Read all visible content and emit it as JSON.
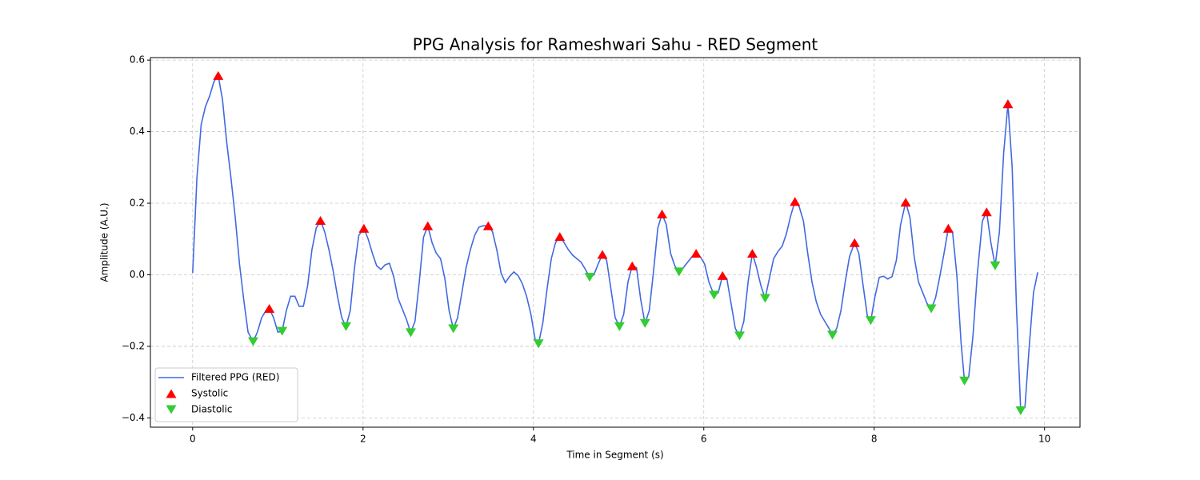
{
  "chart_data": {
    "type": "line",
    "title": "PPG Analysis for Rameshwari Sahu - RED Segment",
    "xlabel": "Time in Segment (s)",
    "ylabel": "Amplitude (A.U.)",
    "xlim": [
      -0.496,
      10.416
    ],
    "ylim": [
      -0.426,
      0.607
    ],
    "xticks": [
      0,
      2,
      4,
      6,
      8,
      10
    ],
    "yticks": [
      {
        "value": -0.4,
        "label": "−0.4"
      },
      {
        "value": -0.2,
        "label": "−0.2"
      },
      {
        "value": 0,
        "label": "0.0"
      },
      0.2,
      0.4,
      0.6
    ],
    "grid": true,
    "legend": "lower left",
    "series": [
      {
        "name": "Filtered PPG (RED)",
        "type": "line",
        "color": "#4169e1",
        "x": [
          0,
          0.05,
          0.1,
          0.15,
          0.2,
          0.25,
          0.3,
          0.35,
          0.4,
          0.45,
          0.5,
          0.55,
          0.6,
          0.65,
          0.71,
          0.76,
          0.81,
          0.86,
          0.9,
          0.95,
          1.0,
          1.05,
          1.1,
          1.15,
          1.2,
          1.25,
          1.3,
          1.35,
          1.4,
          1.45,
          1.5,
          1.55,
          1.6,
          1.65,
          1.7,
          1.75,
          1.8,
          1.85,
          1.9,
          1.95,
          2.01,
          2.06,
          2.11,
          2.16,
          2.21,
          2.26,
          2.31,
          2.36,
          2.41,
          2.46,
          2.51,
          2.56,
          2.61,
          2.66,
          2.71,
          2.76,
          2.81,
          2.86,
          2.91,
          2.96,
          3.01,
          3.06,
          3.11,
          3.16,
          3.21,
          3.26,
          3.31,
          3.36,
          3.41,
          3.47,
          3.52,
          3.57,
          3.62,
          3.67,
          3.72,
          3.77,
          3.82,
          3.87,
          3.92,
          3.97,
          4.02,
          4.06,
          4.11,
          4.16,
          4.21,
          4.26,
          4.31,
          4.36,
          4.41,
          4.46,
          4.51,
          4.56,
          4.61,
          4.66,
          4.71,
          4.76,
          4.81,
          4.86,
          4.91,
          4.96,
          5.01,
          5.06,
          5.11,
          5.16,
          5.21,
          5.26,
          5.31,
          5.36,
          5.41,
          5.46,
          5.51,
          5.56,
          5.61,
          5.66,
          5.71,
          5.76,
          5.81,
          5.86,
          5.91,
          5.96,
          6.01,
          6.06,
          6.12,
          6.17,
          6.22,
          6.27,
          6.32,
          6.37,
          6.42,
          6.47,
          6.52,
          6.57,
          6.62,
          6.67,
          6.72,
          6.77,
          6.82,
          6.87,
          6.92,
          6.97,
          7.02,
          7.07,
          7.12,
          7.17,
          7.22,
          7.27,
          7.32,
          7.37,
          7.42,
          7.47,
          7.51,
          7.56,
          7.61,
          7.66,
          7.71,
          7.77,
          7.82,
          7.87,
          7.92,
          7.96,
          8.01,
          8.06,
          8.11,
          8.16,
          8.21,
          8.26,
          8.31,
          8.37,
          8.42,
          8.47,
          8.52,
          8.57,
          8.62,
          8.67,
          8.72,
          8.77,
          8.82,
          8.87,
          8.92,
          8.97,
          9.02,
          9.06,
          9.11,
          9.16,
          9.21,
          9.27,
          9.32,
          9.37,
          9.42,
          9.47,
          9.52,
          9.57,
          9.62,
          9.67,
          9.72,
          9.77,
          9.82,
          9.87,
          9.92
        ],
        "values": [
          0.005,
          0.27,
          0.42,
          0.47,
          0.5,
          0.54,
          0.557,
          0.49,
          0.37,
          0.27,
          0.16,
          0.03,
          -0.07,
          -0.16,
          -0.187,
          -0.16,
          -0.12,
          -0.1,
          -0.094,
          -0.12,
          -0.16,
          -0.158,
          -0.1,
          -0.06,
          -0.06,
          -0.088,
          -0.088,
          -0.03,
          0.07,
          0.13,
          0.152,
          0.12,
          0.07,
          0.01,
          -0.06,
          -0.12,
          -0.145,
          -0.1,
          0.02,
          0.11,
          0.13,
          0.1,
          0.06,
          0.025,
          0.015,
          0.028,
          0.032,
          -0.005,
          -0.065,
          -0.095,
          -0.125,
          -0.162,
          -0.13,
          -0.02,
          0.105,
          0.137,
          0.09,
          0.06,
          0.045,
          -0.01,
          -0.1,
          -0.151,
          -0.12,
          -0.05,
          0.02,
          0.07,
          0.11,
          0.133,
          0.137,
          0.137,
          0.12,
          0.07,
          0.005,
          -0.022,
          -0.005,
          0.008,
          -0.002,
          -0.025,
          -0.06,
          -0.11,
          -0.18,
          -0.193,
          -0.135,
          -0.04,
          0.045,
          0.09,
          0.107,
          0.09,
          0.07,
          0.055,
          0.045,
          0.035,
          0.015,
          -0.007,
          0.0,
          0.03,
          0.057,
          0.04,
          -0.04,
          -0.12,
          -0.145,
          -0.11,
          -0.02,
          0.025,
          0.02,
          -0.07,
          -0.136,
          -0.1,
          0.01,
          0.13,
          0.17,
          0.14,
          0.06,
          0.025,
          0.008,
          0.02,
          0.035,
          0.05,
          0.06,
          0.05,
          0.03,
          -0.02,
          -0.057,
          -0.05,
          -0.002,
          -0.01,
          -0.08,
          -0.15,
          -0.171,
          -0.13,
          -0.02,
          0.06,
          0.02,
          -0.03,
          -0.066,
          -0.01,
          0.045,
          0.065,
          0.08,
          0.115,
          0.165,
          0.205,
          0.19,
          0.15,
          0.06,
          -0.02,
          -0.075,
          -0.11,
          -0.13,
          -0.15,
          -0.169,
          -0.15,
          -0.1,
          -0.02,
          0.05,
          0.09,
          0.06,
          -0.03,
          -0.115,
          -0.128,
          -0.06,
          -0.007,
          -0.004,
          -0.012,
          -0.005,
          0.04,
          0.14,
          0.203,
          0.16,
          0.05,
          -0.02,
          -0.05,
          -0.08,
          -0.095,
          -0.065,
          -0.005,
          0.06,
          0.13,
          0.12,
          0.0,
          -0.19,
          -0.297,
          -0.285,
          -0.17,
          0.0,
          0.15,
          0.176,
          0.09,
          0.025,
          0.12,
          0.34,
          0.478,
          0.3,
          -0.09,
          -0.38,
          -0.37,
          -0.2,
          -0.05,
          0.007
        ]
      },
      {
        "name": "Systolic",
        "type": "scatter",
        "marker": "^",
        "color": "#ff0000",
        "x": [
          0.3,
          0.9,
          1.5,
          2.01,
          2.76,
          3.47,
          4.31,
          4.81,
          5.16,
          5.51,
          5.91,
          6.22,
          6.57,
          7.07,
          7.77,
          8.37,
          8.87,
          9.32,
          9.57
        ],
        "values": [
          0.557,
          -0.094,
          0.152,
          0.13,
          0.137,
          0.137,
          0.107,
          0.057,
          0.025,
          0.17,
          0.06,
          -0.002,
          0.06,
          0.205,
          0.09,
          0.203,
          0.13,
          0.176,
          0.478
        ]
      },
      {
        "name": "Diastolic",
        "type": "scatter",
        "marker": "v",
        "color": "#32cd32",
        "x": [
          0.71,
          1.05,
          1.8,
          2.56,
          3.06,
          4.06,
          4.66,
          5.01,
          5.31,
          5.71,
          6.12,
          6.42,
          6.72,
          7.51,
          7.96,
          8.67,
          9.06,
          9.42,
          9.72
        ],
        "values": [
          -0.187,
          -0.158,
          -0.145,
          -0.162,
          -0.151,
          -0.193,
          -0.007,
          -0.145,
          -0.136,
          0.008,
          -0.057,
          -0.171,
          -0.066,
          -0.169,
          -0.128,
          -0.095,
          -0.297,
          0.025,
          -0.38
        ]
      }
    ]
  }
}
